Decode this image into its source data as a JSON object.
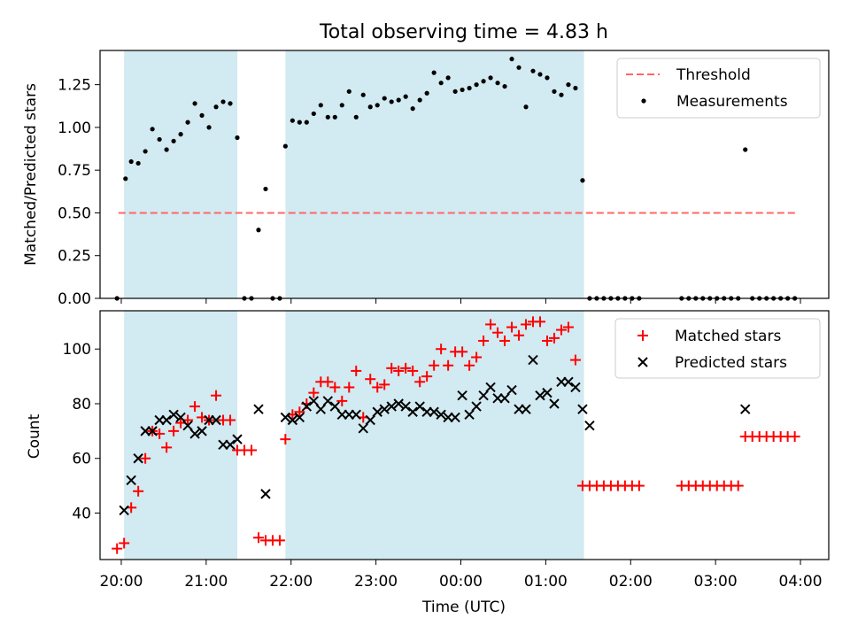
{
  "title": "Total observing time = 4.83 h",
  "colors": {
    "shade": "#add8e6",
    "threshold": "#ff6666",
    "measurement": "#000000",
    "matched": "#ff0000",
    "predicted": "#000000"
  },
  "chart_data": [
    {
      "type": "scatter",
      "title": "Total observing time = 4.83 h",
      "xlabel": "",
      "ylabel": "Matched/Predicted stars",
      "xlim": [
        "19:45",
        "04:20"
      ],
      "ylim": [
        0,
        1.45
      ],
      "x_ticks": [
        "20:00",
        "21:00",
        "22:00",
        "23:00",
        "00:00",
        "01:00",
        "02:00",
        "03:00",
        "04:00"
      ],
      "y_ticks": [
        "0.00",
        "0.25",
        "0.50",
        "0.75",
        "1.00",
        "1.25"
      ],
      "shaded_intervals": [
        [
          "20:02",
          "21:22"
        ],
        [
          "21:56",
          "01:27"
        ]
      ],
      "legend": {
        "placement": "top-right",
        "entries": [
          "Threshold",
          "Measurements"
        ]
      },
      "threshold": {
        "name": "Threshold",
        "y": 0.5,
        "x_range": [
          "19:58",
          "03:58"
        ]
      },
      "series": [
        {
          "name": "Measurements",
          "points": [
            [
              "19:57",
              0.0
            ],
            [
              "20:03",
              0.7
            ],
            [
              "20:07",
              0.8
            ],
            [
              "20:12",
              0.79
            ],
            [
              "20:17",
              0.86
            ],
            [
              "20:22",
              0.99
            ],
            [
              "20:27",
              0.93
            ],
            [
              "20:32",
              0.87
            ],
            [
              "20:37",
              0.92
            ],
            [
              "20:42",
              0.96
            ],
            [
              "20:47",
              1.03
            ],
            [
              "20:52",
              1.14
            ],
            [
              "20:57",
              1.07
            ],
            [
              "21:02",
              1.0
            ],
            [
              "21:07",
              1.12
            ],
            [
              "21:12",
              1.15
            ],
            [
              "21:17",
              1.14
            ],
            [
              "21:22",
              0.94
            ],
            [
              "21:27",
              0.0
            ],
            [
              "21:32",
              0.0
            ],
            [
              "21:37",
              0.4
            ],
            [
              "21:42",
              0.64
            ],
            [
              "21:47",
              0.0
            ],
            [
              "21:52",
              0.0
            ],
            [
              "21:56",
              0.89
            ],
            [
              "22:01",
              1.04
            ],
            [
              "22:06",
              1.03
            ],
            [
              "22:11",
              1.03
            ],
            [
              "22:16",
              1.08
            ],
            [
              "22:21",
              1.13
            ],
            [
              "22:26",
              1.06
            ],
            [
              "22:31",
              1.06
            ],
            [
              "22:36",
              1.13
            ],
            [
              "22:41",
              1.21
            ],
            [
              "22:46",
              1.06
            ],
            [
              "22:51",
              1.19
            ],
            [
              "22:56",
              1.12
            ],
            [
              "23:01",
              1.13
            ],
            [
              "23:06",
              1.17
            ],
            [
              "23:11",
              1.15
            ],
            [
              "23:16",
              1.16
            ],
            [
              "23:21",
              1.18
            ],
            [
              "23:26",
              1.11
            ],
            [
              "23:31",
              1.16
            ],
            [
              "23:36",
              1.2
            ],
            [
              "23:41",
              1.32
            ],
            [
              "23:46",
              1.26
            ],
            [
              "23:51",
              1.29
            ],
            [
              "23:56",
              1.21
            ],
            [
              "00:01",
              1.22
            ],
            [
              "00:06",
              1.23
            ],
            [
              "00:11",
              1.25
            ],
            [
              "00:16",
              1.27
            ],
            [
              "00:21",
              1.29
            ],
            [
              "00:26",
              1.26
            ],
            [
              "00:31",
              1.24
            ],
            [
              "00:36",
              1.4
            ],
            [
              "00:41",
              1.35
            ],
            [
              "00:46",
              1.12
            ],
            [
              "00:51",
              1.33
            ],
            [
              "00:56",
              1.31
            ],
            [
              "01:01",
              1.29
            ],
            [
              "01:06",
              1.21
            ],
            [
              "01:11",
              1.19
            ],
            [
              "01:16",
              1.25
            ],
            [
              "01:21",
              1.23
            ],
            [
              "01:26",
              0.69
            ],
            [
              "01:31",
              0.0
            ],
            [
              "01:36",
              0.0
            ],
            [
              "01:41",
              0.0
            ],
            [
              "01:46",
              0.0
            ],
            [
              "01:51",
              0.0
            ],
            [
              "01:56",
              0.0
            ],
            [
              "02:01",
              0.0
            ],
            [
              "02:06",
              0.0
            ],
            [
              "02:36",
              0.0
            ],
            [
              "02:41",
              0.0
            ],
            [
              "02:46",
              0.0
            ],
            [
              "02:51",
              0.0
            ],
            [
              "02:56",
              0.0
            ],
            [
              "03:01",
              0.0
            ],
            [
              "03:06",
              0.0
            ],
            [
              "03:11",
              0.0
            ],
            [
              "03:16",
              0.0
            ],
            [
              "03:21",
              0.87
            ],
            [
              "03:26",
              0.0
            ],
            [
              "03:31",
              0.0
            ],
            [
              "03:36",
              0.0
            ],
            [
              "03:41",
              0.0
            ],
            [
              "03:46",
              0.0
            ],
            [
              "03:51",
              0.0
            ],
            [
              "03:56",
              0.0
            ]
          ]
        }
      ]
    },
    {
      "type": "scatter",
      "title": "",
      "xlabel": "Time (UTC)",
      "ylabel": "Count",
      "xlim": [
        "19:45",
        "04:20"
      ],
      "ylim": [
        23,
        114
      ],
      "x_ticks": [
        "20:00",
        "21:00",
        "22:00",
        "23:00",
        "00:00",
        "01:00",
        "02:00",
        "03:00",
        "04:00"
      ],
      "y_ticks": [
        "40",
        "60",
        "80",
        "100"
      ],
      "shaded_intervals": [
        [
          "20:02",
          "21:22"
        ],
        [
          "21:56",
          "01:27"
        ]
      ],
      "legend": {
        "placement": "top-right",
        "entries": [
          "Matched stars",
          "Predicted stars"
        ]
      },
      "series": [
        {
          "name": "Matched stars",
          "points": [
            [
              "19:57",
              27
            ],
            [
              "20:02",
              29
            ],
            [
              "20:07",
              42
            ],
            [
              "20:12",
              48
            ],
            [
              "20:17",
              60
            ],
            [
              "20:22",
              70
            ],
            [
              "20:27",
              69
            ],
            [
              "20:32",
              64
            ],
            [
              "20:37",
              70
            ],
            [
              "20:42",
              73
            ],
            [
              "20:47",
              74
            ],
            [
              "20:52",
              79
            ],
            [
              "20:57",
              75
            ],
            [
              "21:02",
              74
            ],
            [
              "21:07",
              83
            ],
            [
              "21:12",
              74
            ],
            [
              "21:17",
              74
            ],
            [
              "21:22",
              63
            ],
            [
              "21:27",
              63
            ],
            [
              "21:32",
              63
            ],
            [
              "21:37",
              31
            ],
            [
              "21:42",
              30
            ],
            [
              "21:47",
              30
            ],
            [
              "21:52",
              30
            ],
            [
              "21:56",
              67
            ],
            [
              "22:01",
              76
            ],
            [
              "22:06",
              77
            ],
            [
              "22:11",
              80
            ],
            [
              "22:16",
              84
            ],
            [
              "22:21",
              88
            ],
            [
              "22:26",
              88
            ],
            [
              "22:31",
              86
            ],
            [
              "22:36",
              81
            ],
            [
              "22:41",
              86
            ],
            [
              "22:46",
              92
            ],
            [
              "22:51",
              75
            ],
            [
              "22:56",
              89
            ],
            [
              "23:01",
              86
            ],
            [
              "23:06",
              87
            ],
            [
              "23:11",
              93
            ],
            [
              "23:16",
              92
            ],
            [
              "23:21",
              93
            ],
            [
              "23:26",
              92
            ],
            [
              "23:31",
              88
            ],
            [
              "23:36",
              90
            ],
            [
              "23:41",
              94
            ],
            [
              "23:46",
              100
            ],
            [
              "23:51",
              94
            ],
            [
              "23:56",
              99
            ],
            [
              "00:01",
              99
            ],
            [
              "00:06",
              94
            ],
            [
              "00:11",
              97
            ],
            [
              "00:16",
              103
            ],
            [
              "00:21",
              109
            ],
            [
              "00:26",
              106
            ],
            [
              "00:31",
              103
            ],
            [
              "00:36",
              108
            ],
            [
              "00:41",
              105
            ],
            [
              "00:46",
              109
            ],
            [
              "00:51",
              110
            ],
            [
              "00:56",
              110
            ],
            [
              "01:01",
              103
            ],
            [
              "01:06",
              104
            ],
            [
              "01:11",
              107
            ],
            [
              "01:16",
              108
            ],
            [
              "01:21",
              96
            ],
            [
              "01:26",
              50
            ],
            [
              "01:31",
              50
            ],
            [
              "01:36",
              50
            ],
            [
              "01:41",
              50
            ],
            [
              "01:46",
              50
            ],
            [
              "01:51",
              50
            ],
            [
              "01:56",
              50
            ],
            [
              "02:01",
              50
            ],
            [
              "02:06",
              50
            ],
            [
              "02:36",
              50
            ],
            [
              "02:41",
              50
            ],
            [
              "02:46",
              50
            ],
            [
              "02:51",
              50
            ],
            [
              "02:56",
              50
            ],
            [
              "03:01",
              50
            ],
            [
              "03:06",
              50
            ],
            [
              "03:11",
              50
            ],
            [
              "03:16",
              50
            ],
            [
              "03:21",
              68
            ],
            [
              "03:26",
              68
            ],
            [
              "03:31",
              68
            ],
            [
              "03:36",
              68
            ],
            [
              "03:41",
              68
            ],
            [
              "03:46",
              68
            ],
            [
              "03:51",
              68
            ],
            [
              "03:56",
              68
            ]
          ]
        },
        {
          "name": "Predicted stars",
          "points": [
            [
              "20:02",
              41
            ],
            [
              "20:07",
              52
            ],
            [
              "20:12",
              60
            ],
            [
              "20:17",
              70
            ],
            [
              "20:22",
              70
            ],
            [
              "20:27",
              74
            ],
            [
              "20:32",
              74
            ],
            [
              "20:37",
              76
            ],
            [
              "20:42",
              75
            ],
            [
              "20:47",
              72
            ],
            [
              "20:52",
              69
            ],
            [
              "20:57",
              70
            ],
            [
              "21:02",
              74
            ],
            [
              "21:07",
              74
            ],
            [
              "21:12",
              65
            ],
            [
              "21:17",
              65
            ],
            [
              "21:22",
              67
            ],
            [
              "21:37",
              78
            ],
            [
              "21:42",
              47
            ],
            [
              "21:56",
              75
            ],
            [
              "22:01",
              74
            ],
            [
              "22:06",
              75
            ],
            [
              "22:11",
              79
            ],
            [
              "22:16",
              81
            ],
            [
              "22:21",
              78
            ],
            [
              "22:26",
              81
            ],
            [
              "22:31",
              79
            ],
            [
              "22:36",
              76
            ],
            [
              "22:41",
              76
            ],
            [
              "22:46",
              76
            ],
            [
              "22:51",
              71
            ],
            [
              "22:56",
              74
            ],
            [
              "23:01",
              77
            ],
            [
              "23:06",
              78
            ],
            [
              "23:11",
              79
            ],
            [
              "23:16",
              80
            ],
            [
              "23:21",
              79
            ],
            [
              "23:26",
              77
            ],
            [
              "23:31",
              79
            ],
            [
              "23:36",
              77
            ],
            [
              "23:41",
              77
            ],
            [
              "23:46",
              76
            ],
            [
              "23:51",
              75
            ],
            [
              "23:56",
              75
            ],
            [
              "00:01",
              83
            ],
            [
              "00:06",
              76
            ],
            [
              "00:11",
              79
            ],
            [
              "00:16",
              83
            ],
            [
              "00:21",
              86
            ],
            [
              "00:26",
              82
            ],
            [
              "00:31",
              82
            ],
            [
              "00:36",
              85
            ],
            [
              "00:41",
              78
            ],
            [
              "00:46",
              78
            ],
            [
              "00:51",
              96
            ],
            [
              "00:56",
              83
            ],
            [
              "01:01",
              84
            ],
            [
              "01:06",
              80
            ],
            [
              "01:11",
              88
            ],
            [
              "01:16",
              88
            ],
            [
              "01:21",
              86
            ],
            [
              "01:26",
              78
            ],
            [
              "01:31",
              72
            ],
            [
              "03:21",
              78
            ]
          ]
        }
      ]
    }
  ]
}
